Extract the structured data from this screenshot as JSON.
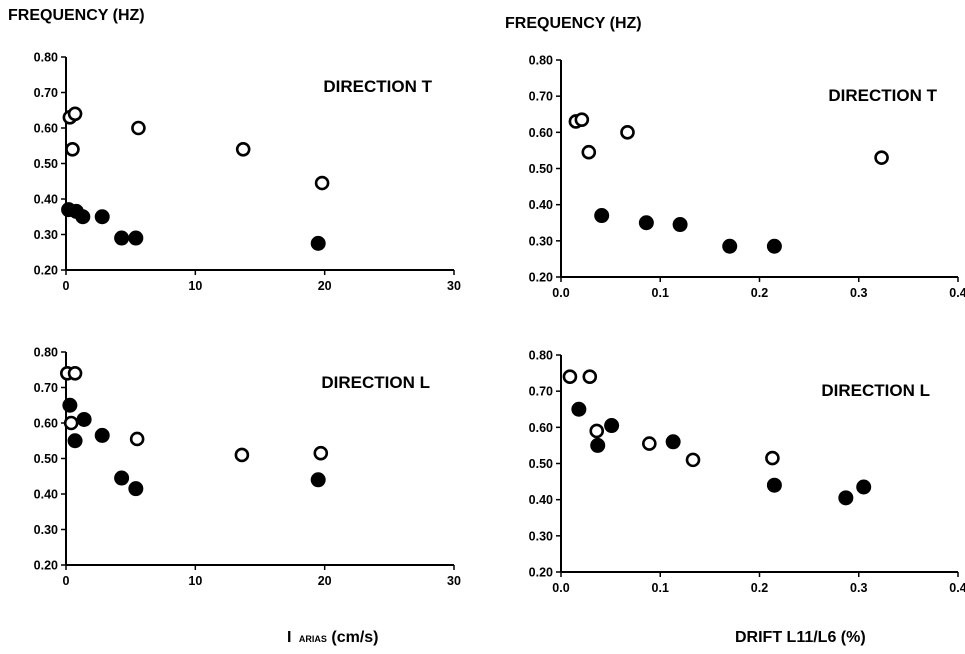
{
  "colors": {
    "ink": "#000000",
    "background": "#ffffff",
    "open_marker_fill": "#ffffff",
    "filled_marker_fill": "#000000"
  },
  "chart_data": [
    {
      "type": "scatter",
      "ylabel": "FREQUENCY (HZ)",
      "annotation": "DIRECTION T",
      "xlim": [
        0,
        30
      ],
      "ylim": [
        0.2,
        0.8
      ],
      "xticks": [
        0,
        10,
        20,
        30
      ],
      "xtick_labels": [
        "0",
        "10",
        "20",
        "30"
      ],
      "yticks": [
        0.2,
        0.3,
        0.4,
        0.5,
        0.6,
        0.7,
        0.8
      ],
      "ytick_labels": [
        "0.20",
        "0.30",
        "0.40",
        "0.50",
        "0.60",
        "0.70",
        "0.80"
      ],
      "grid": false,
      "series": [
        {
          "marker": "open",
          "x": [
            0.3,
            0.7,
            0.5,
            5.6,
            13.7,
            19.8
          ],
          "y": [
            0.63,
            0.64,
            0.54,
            0.6,
            0.54,
            0.445
          ]
        },
        {
          "marker": "filled",
          "x": [
            0.2,
            0.8,
            1.3,
            2.8,
            4.3,
            5.4,
            19.5
          ],
          "y": [
            0.37,
            0.365,
            0.35,
            0.35,
            0.29,
            0.29,
            0.275
          ]
        }
      ]
    },
    {
      "type": "scatter",
      "ylabel": "FREQUENCY (HZ)",
      "annotation": "DIRECTION T",
      "xlim": [
        0,
        0.4
      ],
      "ylim": [
        0.2,
        0.8
      ],
      "xticks": [
        0,
        0.1,
        0.2,
        0.3,
        0.4
      ],
      "xtick_labels": [
        "0.0",
        "0.1",
        "0.2",
        "0.3",
        "0.4"
      ],
      "yticks": [
        0.2,
        0.3,
        0.4,
        0.5,
        0.6,
        0.7,
        0.8
      ],
      "ytick_labels": [
        "0.20",
        "0.30",
        "0.40",
        "0.50",
        "0.60",
        "0.70",
        "0.80"
      ],
      "grid": false,
      "series": [
        {
          "marker": "open",
          "x": [
            0.015,
            0.021,
            0.028,
            0.067,
            0.323
          ],
          "y": [
            0.63,
            0.635,
            0.545,
            0.6,
            0.53
          ]
        },
        {
          "marker": "filled",
          "x": [
            0.041,
            0.086,
            0.12,
            0.17,
            0.215
          ],
          "y": [
            0.37,
            0.35,
            0.345,
            0.285,
            0.285
          ]
        }
      ]
    },
    {
      "type": "scatter",
      "annotation": "DIRECTION L",
      "xlabel": "I ARIAS (cm/s)",
      "xlabel_parts": {
        "main": "I",
        "subscript": "ARIAS",
        "rest": " (cm/s)"
      },
      "xlim": [
        0,
        30
      ],
      "ylim": [
        0.2,
        0.8
      ],
      "xticks": [
        0,
        10,
        20,
        30
      ],
      "xtick_labels": [
        "0",
        "10",
        "20",
        "30"
      ],
      "yticks": [
        0.2,
        0.3,
        0.4,
        0.5,
        0.6,
        0.7,
        0.8
      ],
      "ytick_labels": [
        "0.20",
        "0.30",
        "0.40",
        "0.50",
        "0.60",
        "0.70",
        "0.80"
      ],
      "grid": false,
      "series": [
        {
          "marker": "open",
          "x": [
            0.1,
            0.7,
            0.4,
            5.5,
            13.6,
            19.7
          ],
          "y": [
            0.74,
            0.74,
            0.6,
            0.555,
            0.51,
            0.515
          ]
        },
        {
          "marker": "filled",
          "x": [
            0.3,
            0.7,
            1.4,
            2.8,
            4.3,
            5.4,
            19.5
          ],
          "y": [
            0.65,
            0.55,
            0.61,
            0.565,
            0.445,
            0.415,
            0.44
          ]
        }
      ]
    },
    {
      "type": "scatter",
      "annotation": "DIRECTION L",
      "xlabel": "DRIFT L11/L6 (%)",
      "xlim": [
        0,
        0.4
      ],
      "ylim": [
        0.2,
        0.8
      ],
      "xticks": [
        0,
        0.1,
        0.2,
        0.3,
        0.4
      ],
      "xtick_labels": [
        "0.0",
        "0.1",
        "0.2",
        "0.3",
        "0.4"
      ],
      "yticks": [
        0.2,
        0.3,
        0.4,
        0.5,
        0.6,
        0.7,
        0.8
      ],
      "ytick_labels": [
        "0.20",
        "0.30",
        "0.40",
        "0.50",
        "0.60",
        "0.70",
        "0.80"
      ],
      "grid": false,
      "series": [
        {
          "marker": "open",
          "x": [
            0.009,
            0.029,
            0.036,
            0.089,
            0.133,
            0.213
          ],
          "y": [
            0.74,
            0.74,
            0.59,
            0.555,
            0.51,
            0.515
          ]
        },
        {
          "marker": "filled",
          "x": [
            0.018,
            0.037,
            0.051,
            0.113,
            0.215,
            0.287,
            0.305
          ],
          "y": [
            0.65,
            0.55,
            0.605,
            0.56,
            0.44,
            0.405,
            0.435
          ]
        }
      ]
    }
  ]
}
